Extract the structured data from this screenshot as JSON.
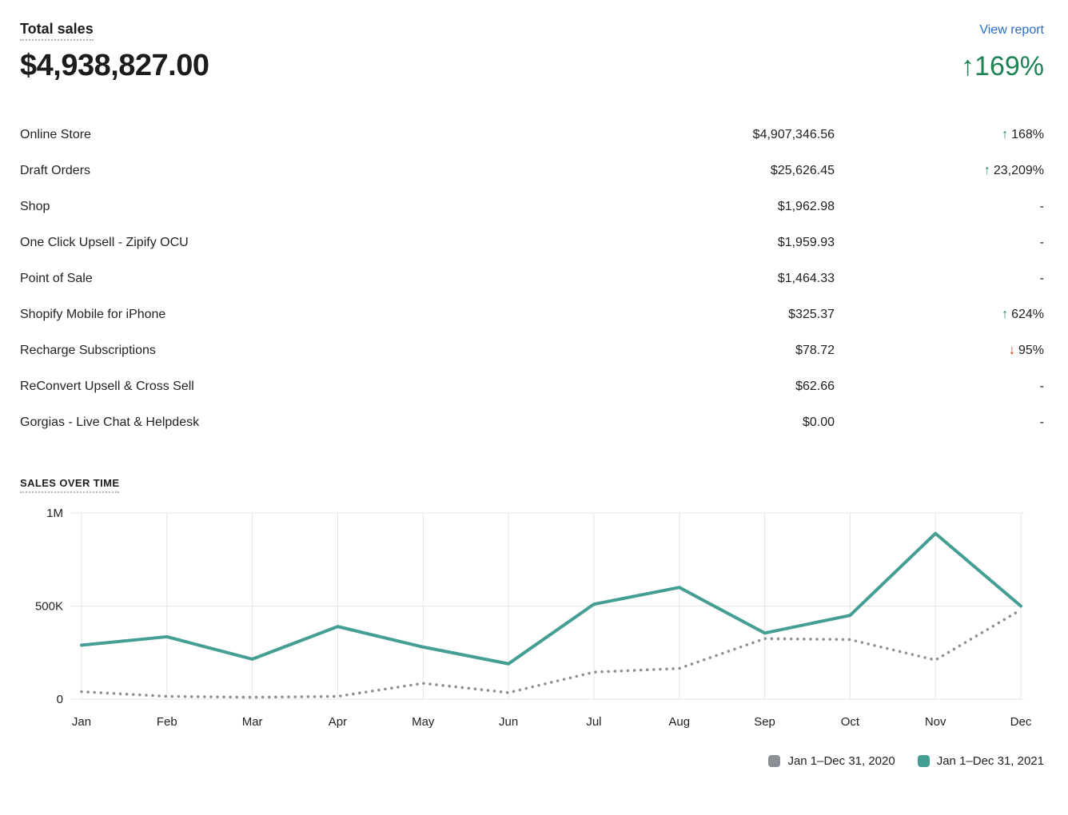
{
  "header": {
    "title": "Total sales",
    "view_report_label": "View report",
    "total_value": "$4,938,827.00",
    "total_change": "169%"
  },
  "glyphs": {
    "up_arrow": "↑",
    "down_arrow": "↓"
  },
  "channels": {
    "rows": [
      {
        "name": "Online Store",
        "amount": "$4,907,346.56",
        "change": "168%",
        "direction": "up"
      },
      {
        "name": "Draft Orders",
        "amount": "$25,626.45",
        "change": "23,209%",
        "direction": "up"
      },
      {
        "name": "Shop",
        "amount": "$1,962.98",
        "change": "-",
        "direction": "none"
      },
      {
        "name": "One Click Upsell - Zipify OCU",
        "amount": "$1,959.93",
        "change": "-",
        "direction": "none"
      },
      {
        "name": "Point of Sale",
        "amount": "$1,464.33",
        "change": "-",
        "direction": "none"
      },
      {
        "name": "Shopify Mobile for iPhone",
        "amount": "$325.37",
        "change": "624%",
        "direction": "up"
      },
      {
        "name": "Recharge Subscriptions",
        "amount": "$78.72",
        "change": "95%",
        "direction": "down"
      },
      {
        "name": "ReConvert Upsell & Cross Sell",
        "amount": "$62.66",
        "change": "-",
        "direction": "none"
      },
      {
        "name": "Gorgias - Live Chat & Helpdesk",
        "amount": "$0.00",
        "change": "-",
        "direction": "none"
      }
    ]
  },
  "sales_over_time": {
    "heading": "SALES OVER TIME"
  },
  "chart_data": {
    "type": "line",
    "title": "Sales over time",
    "categories": [
      "Jan",
      "Feb",
      "Mar",
      "Apr",
      "May",
      "Jun",
      "Jul",
      "Aug",
      "Sep",
      "Oct",
      "Nov",
      "Dec"
    ],
    "series": [
      {
        "name": "Jan 1–Dec 31, 2020",
        "style": "dotted",
        "color": "#8a9096",
        "values": [
          40000,
          15000,
          10000,
          15000,
          85000,
          35000,
          145000,
          165000,
          325000,
          320000,
          210000,
          480000
        ]
      },
      {
        "name": "Jan 1–Dec 31, 2021",
        "style": "solid",
        "color": "#449e94",
        "values": [
          290000,
          335000,
          215000,
          390000,
          280000,
          190000,
          510000,
          600000,
          355000,
          450000,
          890000,
          500000
        ]
      }
    ],
    "xlabel": "",
    "ylabel": "",
    "ylim": [
      0,
      1000000
    ],
    "yticks": [
      {
        "value": 0,
        "label": "0"
      },
      {
        "value": 500000,
        "label": "500K"
      },
      {
        "value": 1000000,
        "label": "1M"
      }
    ],
    "grid": true,
    "legend_position": "bottom-right"
  },
  "colors": {
    "text": "#1c1e20",
    "link_blue": "#2a6bc7",
    "positive_green": "#1e8352",
    "negative_red": "#d72c0d",
    "gridline": "#e4e5e7",
    "line_2020": "#8a9096",
    "line_2021": "#449e94"
  }
}
